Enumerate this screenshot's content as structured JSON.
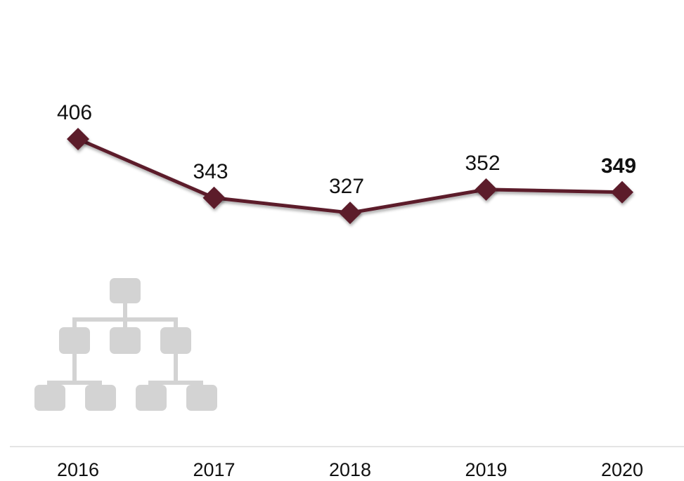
{
  "chart_data": {
    "type": "line",
    "categories": [
      "2016",
      "2017",
      "2018",
      "2019",
      "2020"
    ],
    "series": [
      {
        "values": [
          406,
          343,
          327,
          352,
          349
        ]
      }
    ],
    "data_labels": [
      "406",
      "343",
      "327",
      "352",
      "349"
    ],
    "emphasized_label_index": 4,
    "title": "",
    "xlabel": "",
    "ylabel": "",
    "grid": false,
    "legend": "none",
    "line_color": "#5c1a2c",
    "marker": "diamond"
  },
  "icon": {
    "name": "org-chart-icon",
    "color": "#d3d3d3"
  },
  "axis_color": "#dcdcdc"
}
